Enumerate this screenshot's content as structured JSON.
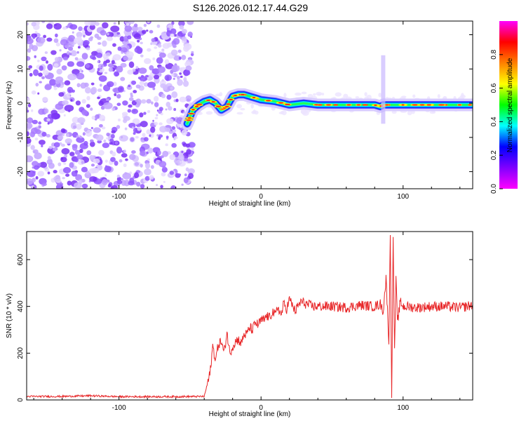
{
  "title": "S126.2026.012.17.44.G29",
  "chart_data": [
    {
      "type": "heatmap",
      "xlabel": "Height of straight line (km)",
      "ylabel": "Frequency (Hz)",
      "xlim": [
        -165,
        149
      ],
      "ylim": [
        -25,
        24
      ],
      "xticks": [
        -100,
        0,
        100
      ],
      "yticks": [
        -20,
        -10,
        0,
        10,
        20
      ],
      "noise_region_x": [
        -165,
        -48
      ],
      "signal_ridge": {
        "x": [
          -52,
          -48,
          -44,
          -40,
          -36,
          -32,
          -28,
          -24,
          -20,
          -16,
          -12,
          -8,
          -4,
          0,
          10,
          20,
          30,
          40,
          50,
          60,
          70,
          80,
          84,
          86,
          90,
          100,
          110,
          120,
          130,
          140,
          149
        ],
        "y": [
          -6,
          -2,
          -0.5,
          0.5,
          1,
          0,
          -2,
          -1,
          2,
          2.5,
          2.5,
          2,
          1.5,
          1,
          0.5,
          -0.5,
          0,
          -0.5,
          -0.5,
          -0.5,
          -0.5,
          -0.5,
          -1,
          -0.5,
          -0.5,
          -0.5,
          -0.5,
          -0.5,
          -0.5,
          -0.5,
          -0.5
        ]
      },
      "colorbar": {
        "label": "Normalized spectral amplitude",
        "range": [
          0,
          1
        ],
        "ticks": [
          "0.0",
          "0.2",
          "0.4",
          "0.6",
          "0.8"
        ],
        "colors": [
          "#ff00ff",
          "#8000ff",
          "#0000ff",
          "#00ffff",
          "#00ff00",
          "#ffff00",
          "#ff8000",
          "#ff0000",
          "#ff00ff"
        ]
      }
    },
    {
      "type": "line",
      "xlabel": "Height of straight line (km)",
      "ylabel": "SNR (10 * v/v)",
      "xlim": [
        -165,
        149
      ],
      "ylim": [
        0,
        720
      ],
      "xticks": [
        -100,
        0,
        100
      ],
      "yticks": [
        0,
        200,
        400,
        600
      ],
      "color": "#e8282a",
      "x": [
        -165,
        -140,
        -120,
        -100,
        -80,
        -60,
        -40,
        -36,
        -34,
        -32,
        -30,
        -28,
        -26,
        -24,
        -22,
        -20,
        -18,
        -16,
        -14,
        -12,
        -10,
        -8,
        -6,
        -4,
        -2,
        0,
        2,
        4,
        6,
        8,
        10,
        12,
        14,
        16,
        18,
        20,
        24,
        28,
        32,
        36,
        40,
        50,
        60,
        70,
        80,
        84,
        86,
        88,
        90,
        91,
        92,
        93,
        94,
        95,
        96,
        98,
        100,
        110,
        120,
        130,
        140,
        149
      ],
      "y": [
        15,
        15,
        18,
        14,
        14,
        14,
        15,
        110,
        230,
        170,
        240,
        250,
        200,
        290,
        200,
        230,
        250,
        260,
        240,
        280,
        280,
        310,
        300,
        330,
        320,
        340,
        340,
        360,
        350,
        380,
        360,
        400,
        360,
        410,
        390,
        430,
        380,
        420,
        410,
        400,
        400,
        400,
        395,
        405,
        400,
        410,
        380,
        520,
        250,
        700,
        10,
        710,
        200,
        520,
        330,
        420,
        400,
        395,
        400,
        400,
        395,
        405
      ]
    }
  ]
}
